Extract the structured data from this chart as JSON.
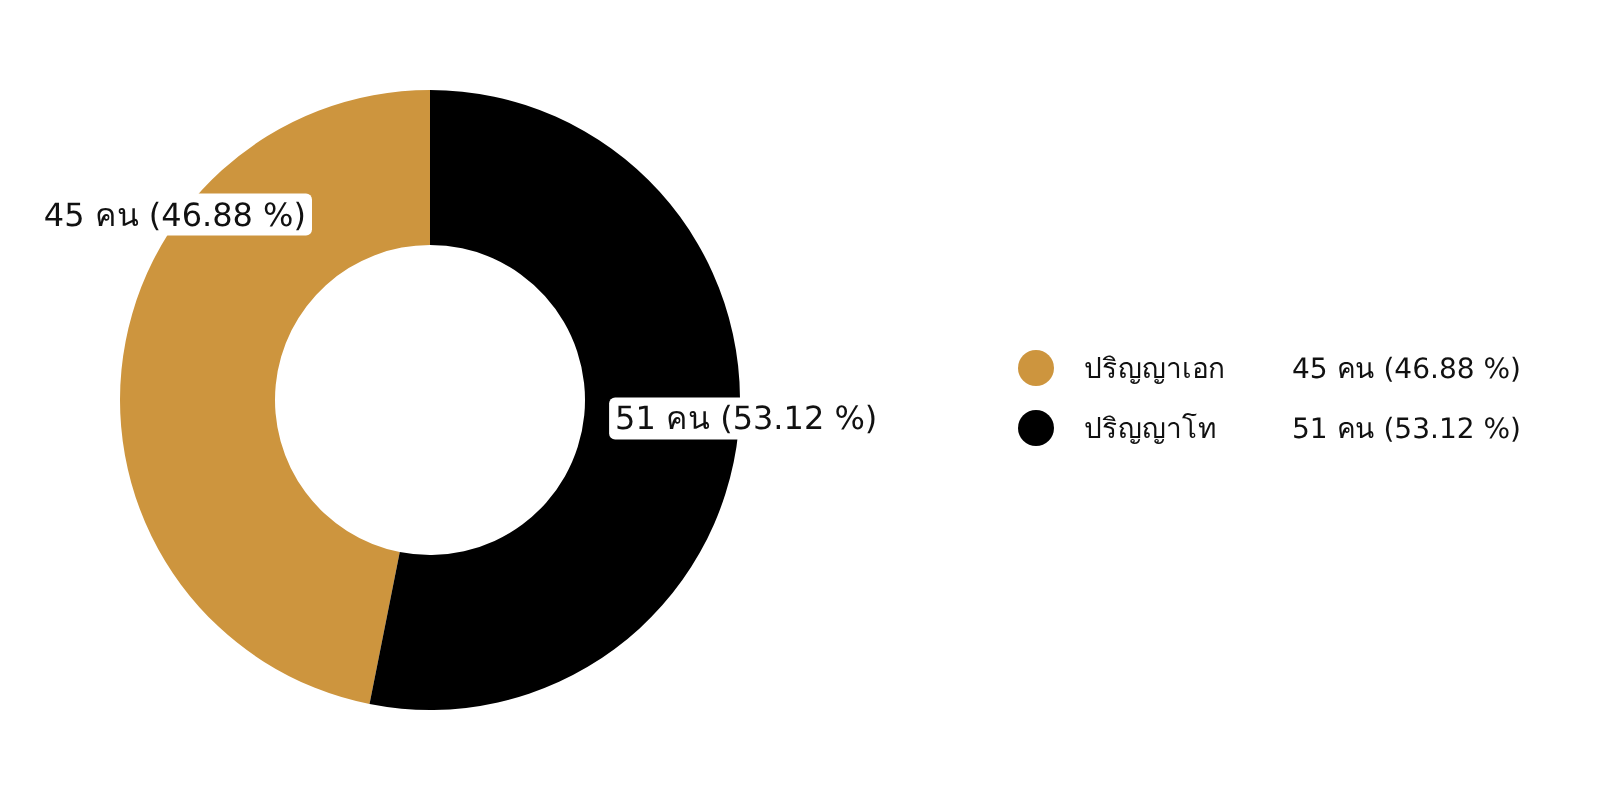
{
  "chart_data": {
    "type": "donut",
    "categories": [
      "ปริญญาเอก",
      "ปริญญาโท"
    ],
    "values": [
      45,
      51
    ],
    "colors": [
      "#cd953e",
      "#000000"
    ],
    "value_labels": [
      "45 คน  (46.88 %)",
      "51 คน (53.12 %)"
    ],
    "legend": "right"
  }
}
